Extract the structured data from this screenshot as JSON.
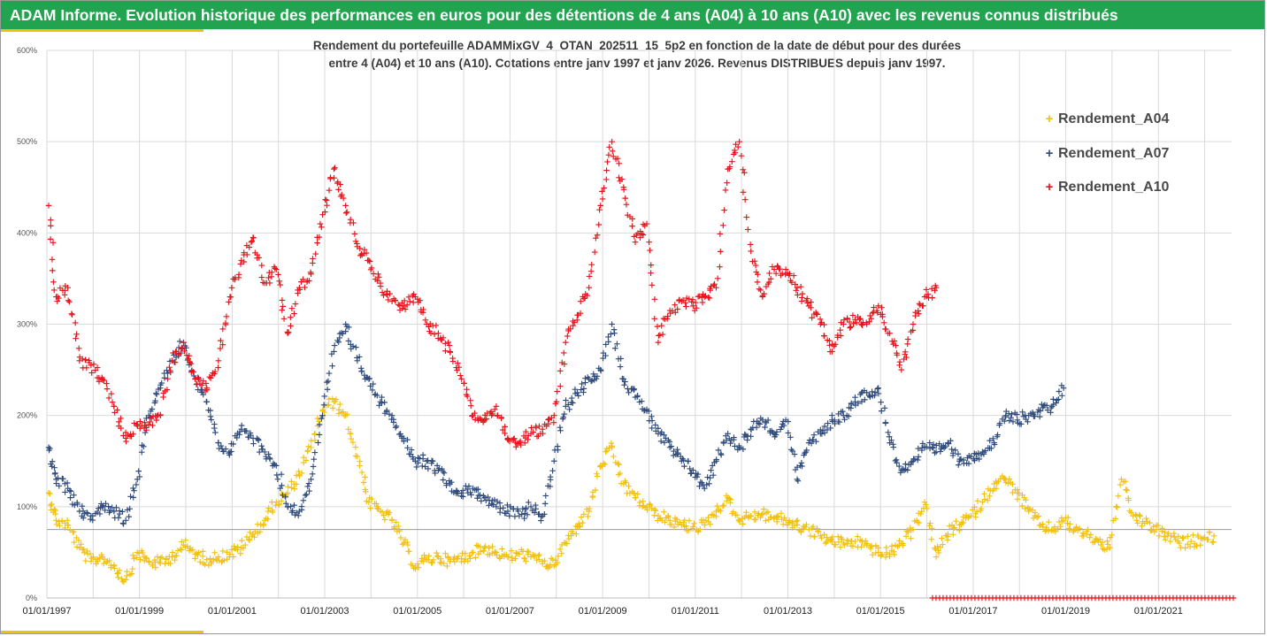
{
  "header": {
    "title": "ADAM Informe. Evolution historique des performances en euros pour des détentions de 4 ans (A04) à 10 ans (A10) avec les revenus connus distribués"
  },
  "chart_data": {
    "type": "scatter",
    "title_line1": "Rendement du portefeuille ADAMMixGV_4_OTAN_202511_15_5p2  en fonction de la date de début pour des durées",
    "title_line2": "entre 4 (A04) et 10 ans (A10). Cotations entre janv 1997 et janv 2026. Revenus DISTRIBUES depuis janv 1997.",
    "y_tick_labels": [
      "0%",
      "100%",
      "200%",
      "300%",
      "400%",
      "500%",
      "600%"
    ],
    "ylim": [
      0,
      600
    ],
    "x_tick_labels": [
      "01/01/1997",
      "01/01/1999",
      "01/01/2001",
      "01/01/2003",
      "01/01/2005",
      "01/01/2007",
      "01/01/2009",
      "01/01/2011",
      "01/01/2013",
      "01/01/2015",
      "01/01/2017",
      "01/01/2019",
      "01/01/2021"
    ],
    "xlim": [
      "1997-01-01",
      "2022-08-01"
    ],
    "reference_line": 75,
    "grid": true,
    "legend_position": "right",
    "series": [
      {
        "name": "Rendement_A04",
        "color": "#f2c10f",
        "points": [
          [
            "1997-01",
            115
          ],
          [
            "1997-03",
            85
          ],
          [
            "1997-06",
            80
          ],
          [
            "1997-09",
            55
          ],
          [
            "1997-12",
            40
          ],
          [
            "1998-03",
            45
          ],
          [
            "1998-06",
            35
          ],
          [
            "1998-09",
            20
          ],
          [
            "1998-12",
            50
          ],
          [
            "1999-03",
            40
          ],
          [
            "1999-06",
            38
          ],
          [
            "1999-09",
            45
          ],
          [
            "1999-12",
            58
          ],
          [
            "2000-03",
            48
          ],
          [
            "2000-06",
            42
          ],
          [
            "2000-09",
            45
          ],
          [
            "2000-12",
            48
          ],
          [
            "2001-03",
            55
          ],
          [
            "2001-06",
            70
          ],
          [
            "2001-09",
            85
          ],
          [
            "2001-12",
            105
          ],
          [
            "2002-03",
            115
          ],
          [
            "2002-06",
            135
          ],
          [
            "2002-09",
            165
          ],
          [
            "2002-12",
            205
          ],
          [
            "2003-03",
            215
          ],
          [
            "2003-06",
            200
          ],
          [
            "2003-09",
            155
          ],
          [
            "2003-12",
            105
          ],
          [
            "2004-03",
            95
          ],
          [
            "2004-06",
            85
          ],
          [
            "2004-09",
            60
          ],
          [
            "2004-12",
            35
          ],
          [
            "2005-03",
            42
          ],
          [
            "2005-06",
            45
          ],
          [
            "2005-09",
            40
          ],
          [
            "2005-12",
            43
          ],
          [
            "2006-03",
            50
          ],
          [
            "2006-06",
            55
          ],
          [
            "2006-09",
            50
          ],
          [
            "2006-12",
            45
          ],
          [
            "2007-03",
            48
          ],
          [
            "2007-06",
            45
          ],
          [
            "2007-09",
            40
          ],
          [
            "2007-12",
            35
          ],
          [
            "2008-03",
            60
          ],
          [
            "2008-06",
            78
          ],
          [
            "2008-09",
            95
          ],
          [
            "2008-12",
            145
          ],
          [
            "2009-03",
            165
          ],
          [
            "2009-06",
            125
          ],
          [
            "2009-09",
            110
          ],
          [
            "2009-12",
            100
          ],
          [
            "2010-03",
            90
          ],
          [
            "2010-06",
            85
          ],
          [
            "2010-09",
            80
          ],
          [
            "2010-12",
            78
          ],
          [
            "2011-03",
            80
          ],
          [
            "2011-06",
            95
          ],
          [
            "2011-09",
            110
          ],
          [
            "2011-12",
            85
          ],
          [
            "2012-03",
            90
          ],
          [
            "2012-06",
            92
          ],
          [
            "2012-09",
            88
          ],
          [
            "2012-12",
            85
          ],
          [
            "2013-03",
            80
          ],
          [
            "2013-06",
            75
          ],
          [
            "2013-09",
            68
          ],
          [
            "2013-12",
            62
          ],
          [
            "2014-03",
            60
          ],
          [
            "2014-06",
            62
          ],
          [
            "2014-09",
            58
          ],
          [
            "2014-12",
            50
          ],
          [
            "2015-03",
            48
          ],
          [
            "2015-06",
            60
          ],
          [
            "2015-09",
            75
          ],
          [
            "2015-12",
            105
          ],
          [
            "2016-03",
            45
          ],
          [
            "2016-06",
            70
          ],
          [
            "2016-09",
            80
          ],
          [
            "2016-12",
            90
          ],
          [
            "2017-03",
            105
          ],
          [
            "2017-06",
            125
          ],
          [
            "2017-09",
            130
          ],
          [
            "2017-12",
            115
          ],
          [
            "2018-03",
            95
          ],
          [
            "2018-06",
            80
          ],
          [
            "2018-09",
            75
          ],
          [
            "2018-12",
            85
          ],
          [
            "2019-03",
            75
          ],
          [
            "2019-06",
            70
          ],
          [
            "2019-09",
            62
          ],
          [
            "2019-12",
            55
          ],
          [
            "2020-03",
            130
          ],
          [
            "2020-06",
            90
          ],
          [
            "2020-09",
            82
          ],
          [
            "2020-12",
            75
          ],
          [
            "2021-03",
            68
          ],
          [
            "2021-06",
            60
          ],
          [
            "2021-09",
            62
          ],
          [
            "2021-12",
            65
          ],
          [
            "2022-03",
            68
          ]
        ]
      },
      {
        "name": "Rendement_A07",
        "color": "#2f4b7c",
        "points": [
          [
            "1997-01",
            165
          ],
          [
            "1997-03",
            130
          ],
          [
            "1997-06",
            120
          ],
          [
            "1997-09",
            95
          ],
          [
            "1997-12",
            90
          ],
          [
            "1998-03",
            100
          ],
          [
            "1998-06",
            95
          ],
          [
            "1998-09",
            85
          ],
          [
            "1998-12",
            130
          ],
          [
            "1999-03",
            200
          ],
          [
            "1999-06",
            230
          ],
          [
            "1999-09",
            260
          ],
          [
            "1999-12",
            280
          ],
          [
            "2000-03",
            240
          ],
          [
            "2000-06",
            215
          ],
          [
            "2000-09",
            170
          ],
          [
            "2000-12",
            160
          ],
          [
            "2001-03",
            185
          ],
          [
            "2001-06",
            175
          ],
          [
            "2001-09",
            160
          ],
          [
            "2001-12",
            145
          ],
          [
            "2002-03",
            100
          ],
          [
            "2002-06",
            95
          ],
          [
            "2002-09",
            130
          ],
          [
            "2002-12",
            200
          ],
          [
            "2003-03",
            270
          ],
          [
            "2003-06",
            300
          ],
          [
            "2003-09",
            260
          ],
          [
            "2003-12",
            240
          ],
          [
            "2004-03",
            215
          ],
          [
            "2004-06",
            200
          ],
          [
            "2004-09",
            175
          ],
          [
            "2004-12",
            150
          ],
          [
            "2005-03",
            150
          ],
          [
            "2005-06",
            140
          ],
          [
            "2005-09",
            125
          ],
          [
            "2005-12",
            115
          ],
          [
            "2006-03",
            120
          ],
          [
            "2006-06",
            110
          ],
          [
            "2006-09",
            100
          ],
          [
            "2006-12",
            95
          ],
          [
            "2007-03",
            90
          ],
          [
            "2007-06",
            100
          ],
          [
            "2007-09",
            90
          ],
          [
            "2007-12",
            150
          ],
          [
            "2008-03",
            210
          ],
          [
            "2008-06",
            225
          ],
          [
            "2008-09",
            240
          ],
          [
            "2008-12",
            250
          ],
          [
            "2009-03",
            300
          ],
          [
            "2009-06",
            240
          ],
          [
            "2009-09",
            220
          ],
          [
            "2009-12",
            205
          ],
          [
            "2010-03",
            180
          ],
          [
            "2010-06",
            165
          ],
          [
            "2010-09",
            150
          ],
          [
            "2010-12",
            140
          ],
          [
            "2011-03",
            120
          ],
          [
            "2011-06",
            150
          ],
          [
            "2011-09",
            180
          ],
          [
            "2011-12",
            165
          ],
          [
            "2012-03",
            185
          ],
          [
            "2012-06",
            195
          ],
          [
            "2012-09",
            180
          ],
          [
            "2012-12",
            195
          ],
          [
            "2013-03",
            130
          ],
          [
            "2013-06",
            170
          ],
          [
            "2013-09",
            180
          ],
          [
            "2013-12",
            195
          ],
          [
            "2014-03",
            200
          ],
          [
            "2014-06",
            215
          ],
          [
            "2014-09",
            225
          ],
          [
            "2014-12",
            230
          ],
          [
            "2015-03",
            170
          ],
          [
            "2015-06",
            140
          ],
          [
            "2015-09",
            150
          ],
          [
            "2015-12",
            165
          ],
          [
            "2016-03",
            160
          ],
          [
            "2016-06",
            170
          ],
          [
            "2016-09",
            150
          ],
          [
            "2016-12",
            155
          ],
          [
            "2017-03",
            160
          ],
          [
            "2017-06",
            170
          ],
          [
            "2017-09",
            200
          ],
          [
            "2017-12",
            195
          ],
          [
            "2018-03",
            200
          ],
          [
            "2018-06",
            205
          ],
          [
            "2018-09",
            210
          ],
          [
            "2018-12",
            230
          ]
        ]
      },
      {
        "name": "Rendement_A10",
        "color": "#e8131b",
        "points": [
          [
            "1997-01",
            430
          ],
          [
            "1997-03",
            330
          ],
          [
            "1997-06",
            340
          ],
          [
            "1997-09",
            260
          ],
          [
            "1997-12",
            255
          ],
          [
            "1998-03",
            240
          ],
          [
            "1998-06",
            210
          ],
          [
            "1998-09",
            175
          ],
          [
            "1998-12",
            190
          ],
          [
            "1999-03",
            190
          ],
          [
            "1999-06",
            200
          ],
          [
            "1999-09",
            260
          ],
          [
            "1999-12",
            280
          ],
          [
            "2000-03",
            240
          ],
          [
            "2000-06",
            230
          ],
          [
            "2000-09",
            260
          ],
          [
            "2000-12",
            330
          ],
          [
            "2001-03",
            370
          ],
          [
            "2001-06",
            395
          ],
          [
            "2001-09",
            345
          ],
          [
            "2001-12",
            360
          ],
          [
            "2002-03",
            290
          ],
          [
            "2002-06",
            340
          ],
          [
            "2002-09",
            355
          ],
          [
            "2002-12",
            420
          ],
          [
            "2003-03",
            470
          ],
          [
            "2003-06",
            430
          ],
          [
            "2003-09",
            385
          ],
          [
            "2003-12",
            370
          ],
          [
            "2004-03",
            345
          ],
          [
            "2004-06",
            325
          ],
          [
            "2004-09",
            320
          ],
          [
            "2004-12",
            330
          ],
          [
            "2005-03",
            300
          ],
          [
            "2005-06",
            290
          ],
          [
            "2005-09",
            270
          ],
          [
            "2005-12",
            240
          ],
          [
            "2006-03",
            200
          ],
          [
            "2006-06",
            195
          ],
          [
            "2006-09",
            210
          ],
          [
            "2006-12",
            175
          ],
          [
            "2007-03",
            170
          ],
          [
            "2007-06",
            180
          ],
          [
            "2007-09",
            185
          ],
          [
            "2007-12",
            200
          ],
          [
            "2008-03",
            280
          ],
          [
            "2008-06",
            310
          ],
          [
            "2008-09",
            340
          ],
          [
            "2008-12",
            430
          ],
          [
            "2009-03",
            500
          ],
          [
            "2009-06",
            450
          ],
          [
            "2009-09",
            390
          ],
          [
            "2009-12",
            410
          ],
          [
            "2010-03",
            280
          ],
          [
            "2010-06",
            315
          ],
          [
            "2010-09",
            325
          ],
          [
            "2010-12",
            320
          ],
          [
            "2011-03",
            330
          ],
          [
            "2011-06",
            340
          ],
          [
            "2011-09",
            470
          ],
          [
            "2011-12",
            500
          ],
          [
            "2012-03",
            380
          ],
          [
            "2012-06",
            330
          ],
          [
            "2012-09",
            360
          ],
          [
            "2012-12",
            360
          ],
          [
            "2013-03",
            340
          ],
          [
            "2013-06",
            320
          ],
          [
            "2013-09",
            300
          ],
          [
            "2013-12",
            270
          ],
          [
            "2014-03",
            300
          ],
          [
            "2014-06",
            305
          ],
          [
            "2014-09",
            300
          ],
          [
            "2014-12",
            320
          ],
          [
            "2015-03",
            290
          ],
          [
            "2015-06",
            250
          ],
          [
            "2015-09",
            300
          ],
          [
            "2015-12",
            330
          ],
          [
            "2016-03",
            340
          ]
        ],
        "zero_band": [
          "2016-02",
          "2022-08"
        ]
      }
    ]
  }
}
